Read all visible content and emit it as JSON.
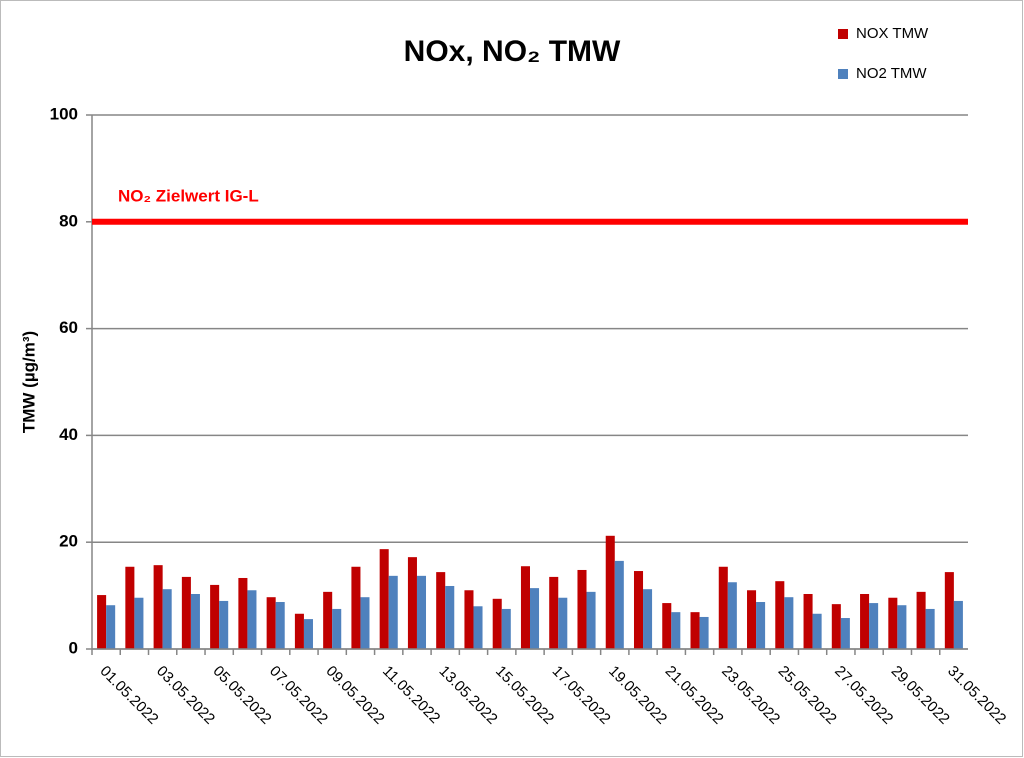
{
  "chart_data": {
    "type": "bar",
    "title": "NOx, NO₂ TMW",
    "y_label": "TMW (µg/m³)",
    "categories": [
      "01.05.2022",
      null,
      "03.05.2022",
      null,
      "05.05.2022",
      null,
      "07.05.2022",
      null,
      "09.05.2022",
      null,
      "11.05.2022",
      null,
      "13.05.2022",
      null,
      "15.05.2022",
      null,
      "17.05.2022",
      null,
      "19.05.2022",
      null,
      "21.05.2022",
      null,
      "23.05.2022",
      null,
      "25.05.2022",
      null,
      "27.05.2022",
      null,
      "29.05.2022",
      null,
      "31.05.2022"
    ],
    "series": [
      {
        "name": "NOX TMW",
        "color": "#c00000",
        "values": [
          10.1,
          15.4,
          15.7,
          13.5,
          12,
          13.3,
          9.7,
          6.6,
          10.7,
          15.4,
          18.7,
          17.2,
          14.4,
          11,
          9.4,
          15.5,
          13.5,
          14.8,
          21.2,
          14.6,
          8.6,
          6.9,
          15.4,
          11,
          12.7,
          10.3,
          8.4,
          10.3,
          9.6,
          10.7,
          14.4
        ]
      },
      {
        "name": "NO2 TMW",
        "color": "#4f81bd",
        "values": [
          8.2,
          9.6,
          11.2,
          10.3,
          9,
          11,
          8.8,
          5.6,
          7.5,
          9.7,
          13.7,
          13.7,
          11.8,
          8,
          7.5,
          11.4,
          9.6,
          10.7,
          16.5,
          11.2,
          6.9,
          6,
          12.5,
          8.8,
          9.7,
          6.6,
          5.8,
          8.6,
          8.2,
          7.5,
          9
        ]
      }
    ],
    "reference_line": {
      "value": 80,
      "label": "NO₂ Zielwert IG-L",
      "color": "#ff0000"
    },
    "ylim": [
      0,
      100
    ],
    "yticks": [
      0,
      20,
      40,
      60,
      80,
      100
    ],
    "grid": true,
    "legend": "top-right"
  }
}
